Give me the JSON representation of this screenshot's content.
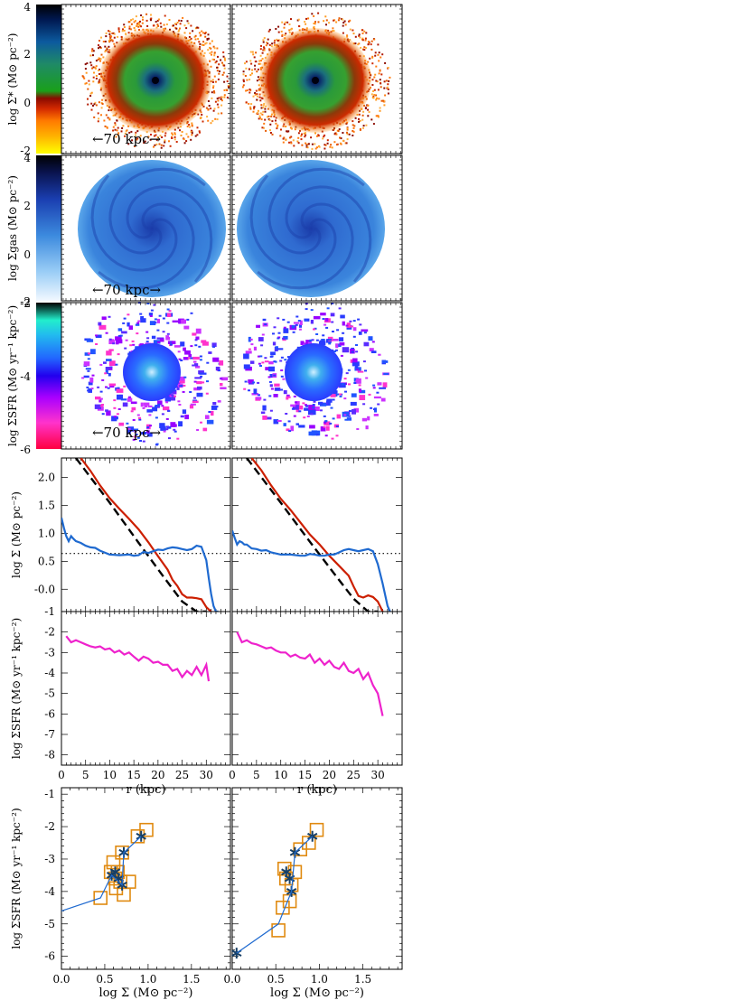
{
  "chart_data": [
    {
      "type": "heatmap",
      "panel": "stellar-surface-density-maps",
      "colorbar": {
        "label": "log Σ* (M⊙ pc⁻²)",
        "ticks": [
          "4",
          "2",
          "0",
          "-2"
        ],
        "range": [
          -2,
          4
        ]
      },
      "scale_label": "←70 kpc→",
      "colormap": [
        "#ffff00",
        "#ff9900",
        "#cc2200",
        "#8a0a00",
        "#1aa01a",
        "#1f8a66",
        "#1060a0",
        "#001850",
        "#000000"
      ]
    },
    {
      "type": "heatmap",
      "panel": "gas-surface-density-maps",
      "colorbar": {
        "label": "log Σgas (M⊙ pc⁻²)",
        "ticks": [
          "4",
          "2",
          "0",
          "-2"
        ],
        "range": [
          -2,
          4
        ]
      },
      "scale_label": "←70 kpc→",
      "colormap": [
        "#e8f4ff",
        "#8ec4f4",
        "#3c8ade",
        "#1a4ab8",
        "#0a1e70",
        "#000000"
      ]
    },
    {
      "type": "heatmap",
      "panel": "sfr-surface-density-maps",
      "colorbar": {
        "label": "log ΣSFR (M⊙ yr⁻¹ kpc⁻²)",
        "ticks": [
          "-2",
          "-4",
          "-6"
        ],
        "range": [
          -6,
          0
        ]
      },
      "scale_label": "←70 kpc→",
      "colormap": [
        "#ff0040",
        "#ff33cc",
        "#aa00ff",
        "#3300ee",
        "#2266ff",
        "#22bbee",
        "#22eecc",
        "#000000"
      ]
    },
    {
      "type": "line",
      "panel": "surface-density-profiles",
      "ylabel": "log Σ (M⊙ pc⁻²)",
      "xlim": [
        0,
        35
      ],
      "ylim": [
        -0.4,
        2.35
      ],
      "yticks": [
        -0.0,
        0.5,
        1.0,
        1.5,
        2.0
      ],
      "ytick_labels": [
        "-0.0",
        "0.5",
        "1.0",
        "1.5",
        "2.0"
      ],
      "hline": 0.64,
      "series": [
        {
          "panel": "left",
          "color": "#cc1f00",
          "style": "solid",
          "x": [
            4,
            6,
            8,
            10,
            12,
            14,
            16,
            18,
            20,
            22,
            23,
            24,
            25,
            26,
            27,
            28,
            29,
            30,
            31
          ],
          "y": [
            2.38,
            2.12,
            1.86,
            1.63,
            1.44,
            1.26,
            1.07,
            0.84,
            0.59,
            0.35,
            0.17,
            0.06,
            -0.09,
            -0.15,
            -0.15,
            -0.16,
            -0.18,
            -0.32,
            -0.45
          ]
        },
        {
          "panel": "left",
          "color": "#000000",
          "style": "dashed",
          "x": [
            3,
            10,
            16,
            21,
            25,
            28,
            30
          ],
          "y": [
            2.45,
            1.55,
            0.83,
            0.24,
            -0.22,
            -0.57,
            -0.8
          ]
        },
        {
          "panel": "left",
          "color": "#1f6ad0",
          "style": "solid",
          "x": [
            0,
            0.5,
            1,
            1.5,
            2,
            2.5,
            3,
            4,
            5,
            6,
            7,
            8,
            10,
            12,
            14,
            15,
            16,
            17,
            18,
            19,
            20,
            21,
            22,
            23,
            24,
            25,
            26,
            27,
            28,
            29,
            30,
            30.5,
            31,
            31.5,
            32,
            32.5
          ],
          "y": [
            1.28,
            1.1,
            0.95,
            0.86,
            0.95,
            0.9,
            0.86,
            0.83,
            0.78,
            0.75,
            0.74,
            0.69,
            0.62,
            0.61,
            0.62,
            0.6,
            0.61,
            0.67,
            0.65,
            0.68,
            0.71,
            0.7,
            0.73,
            0.75,
            0.74,
            0.72,
            0.7,
            0.72,
            0.78,
            0.76,
            0.52,
            0.2,
            -0.08,
            -0.3,
            -0.4,
            -0.4
          ]
        },
        {
          "panel": "right",
          "color": "#cc1f00",
          "style": "solid",
          "x": [
            4,
            6,
            8,
            10,
            12,
            14,
            16,
            18,
            20,
            22,
            24,
            25,
            26,
            27,
            28,
            29,
            30,
            31
          ],
          "y": [
            2.38,
            2.13,
            1.86,
            1.62,
            1.42,
            1.2,
            0.98,
            0.8,
            0.6,
            0.42,
            0.24,
            0.05,
            -0.12,
            -0.15,
            -0.11,
            -0.14,
            -0.22,
            -0.45
          ]
        },
        {
          "panel": "right",
          "color": "#000000",
          "style": "dashed",
          "x": [
            3,
            10,
            16,
            21,
            25,
            28,
            30
          ],
          "y": [
            2.45,
            1.55,
            0.85,
            0.28,
            -0.17,
            -0.52,
            -0.75
          ]
        },
        {
          "panel": "right",
          "color": "#1f6ad0",
          "style": "solid",
          "x": [
            0,
            0.5,
            1,
            1.5,
            2,
            2.5,
            3,
            4,
            5,
            6,
            7,
            8,
            10,
            12,
            14,
            15,
            16,
            17,
            18,
            19,
            20,
            21,
            22,
            23,
            24,
            25,
            26,
            27,
            28,
            29,
            30,
            31,
            32,
            32.5
          ],
          "y": [
            1.05,
            0.92,
            0.8,
            0.86,
            0.84,
            0.8,
            0.8,
            0.73,
            0.72,
            0.69,
            0.7,
            0.66,
            0.62,
            0.62,
            0.6,
            0.6,
            0.63,
            0.62,
            0.6,
            0.6,
            0.62,
            0.62,
            0.66,
            0.7,
            0.72,
            0.7,
            0.68,
            0.7,
            0.72,
            0.68,
            0.45,
            0.1,
            -0.3,
            -0.4
          ]
        }
      ]
    },
    {
      "type": "line",
      "panel": "sfr-density-profiles",
      "ylabel": "log ΣSFR (M⊙ yr⁻¹ kpc⁻²)",
      "xlabel": "r (kpc)",
      "xlim": [
        0,
        35
      ],
      "ylim": [
        -8.5,
        -1
      ],
      "xticks": [
        0,
        5,
        10,
        15,
        20,
        25,
        30
      ],
      "xtick_labels": [
        "0",
        "5",
        "10",
        "15",
        "20",
        "25",
        "30"
      ],
      "yticks": [
        -8,
        -7,
        -6,
        -5,
        -4,
        -3,
        -2,
        -1
      ],
      "ytick_labels": [
        "-8",
        "-7",
        "-6",
        "-5",
        "-4",
        "-3",
        "-2",
        "-1"
      ],
      "series": [
        {
          "panel": "left",
          "color": "#ee22cc",
          "x": [
            1,
            2,
            3,
            4,
            5,
            6,
            7,
            8,
            9,
            10,
            11,
            12,
            13,
            14,
            15,
            16,
            17,
            18,
            19,
            20,
            21,
            22,
            23,
            24,
            25,
            26,
            27,
            28,
            29,
            30,
            30.5
          ],
          "y": [
            -2.2,
            -2.5,
            -2.4,
            -2.5,
            -2.6,
            -2.7,
            -2.75,
            -2.7,
            -2.85,
            -2.8,
            -3.0,
            -2.9,
            -3.1,
            -3.0,
            -3.2,
            -3.4,
            -3.2,
            -3.3,
            -3.5,
            -3.45,
            -3.6,
            -3.6,
            -3.9,
            -3.8,
            -4.2,
            -3.9,
            -4.1,
            -3.7,
            -4.1,
            -3.6,
            -4.4
          ]
        },
        {
          "panel": "right",
          "color": "#ee22cc",
          "x": [
            1,
            2,
            3,
            4,
            5,
            6,
            7,
            8,
            9,
            10,
            11,
            12,
            13,
            14,
            15,
            16,
            17,
            18,
            19,
            20,
            21,
            22,
            23,
            24,
            25,
            26,
            27,
            28,
            29,
            30,
            31
          ],
          "y": [
            -2.0,
            -2.5,
            -2.4,
            -2.55,
            -2.6,
            -2.7,
            -2.8,
            -2.75,
            -2.9,
            -3.0,
            -3.0,
            -3.2,
            -3.1,
            -3.25,
            -3.3,
            -3.1,
            -3.5,
            -3.3,
            -3.6,
            -3.4,
            -3.7,
            -3.8,
            -3.5,
            -3.9,
            -4.0,
            -3.8,
            -4.3,
            -4.0,
            -4.6,
            -5.0,
            -6.1
          ]
        }
      ]
    },
    {
      "type": "scatter",
      "panel": "kennicutt-schmidt",
      "xlabel": "log Σ (M⊙ pc⁻²)",
      "ylabel": "log ΣSFR (M⊙ yr⁻¹ kpc⁻²)",
      "xlim": [
        0,
        1.95
      ],
      "ylim": [
        -6.4,
        -0.8
      ],
      "xticks": [
        0,
        0.5,
        1.0,
        1.5
      ],
      "xtick_labels": [
        "0.0",
        "0.5",
        "1.0",
        "1.5"
      ],
      "yticks": [
        -6,
        -5,
        -4,
        -3,
        -2,
        -1
      ],
      "ytick_labels": [
        "-6",
        "-5",
        "-4",
        "-3",
        "-2",
        "-1"
      ],
      "series": [
        {
          "panel": "left",
          "marker": "square",
          "color": "#e08a10",
          "x": [
            0.45,
            0.57,
            0.6,
            0.62,
            0.63,
            0.65,
            0.68,
            0.72,
            0.7,
            0.78,
            0.88,
            0.98
          ],
          "y": [
            -4.2,
            -3.4,
            -3.1,
            -3.6,
            -3.9,
            -3.4,
            -3.7,
            -4.1,
            -2.8,
            -3.7,
            -2.3,
            -2.1
          ]
        },
        {
          "panel": "left",
          "marker": "asterisk",
          "color": "#173f66",
          "x": [
            0.58,
            0.62,
            0.66,
            0.7,
            0.72,
            0.92
          ],
          "y": [
            -3.5,
            -3.4,
            -3.6,
            -3.8,
            -2.8,
            -2.3
          ]
        },
        {
          "panel": "left",
          "style": "line",
          "color": "#1f6ad0",
          "x": [
            0.0,
            0.45,
            0.58,
            0.7,
            0.72,
            0.92
          ],
          "y": [
            -4.6,
            -4.2,
            -3.5,
            -3.8,
            -2.8,
            -2.3
          ]
        },
        {
          "panel": "right",
          "marker": "square",
          "color": "#e08a10",
          "x": [
            0.53,
            0.58,
            0.6,
            0.62,
            0.66,
            0.68,
            0.72,
            0.78,
            0.88,
            0.97
          ],
          "y": [
            -5.2,
            -4.5,
            -3.3,
            -3.6,
            -4.3,
            -3.8,
            -3.4,
            -2.7,
            -2.5,
            -2.1
          ]
        },
        {
          "panel": "right",
          "marker": "asterisk",
          "color": "#173f66",
          "x": [
            0.05,
            0.62,
            0.66,
            0.68,
            0.72,
            0.92
          ],
          "y": [
            -5.9,
            -3.4,
            -3.6,
            -4.0,
            -2.8,
            -2.3
          ]
        },
        {
          "panel": "right",
          "style": "line",
          "color": "#1f6ad0",
          "x": [
            0.05,
            0.53,
            0.68,
            0.72,
            0.92
          ],
          "y": [
            -5.9,
            -5.0,
            -4.0,
            -2.8,
            -2.3
          ]
        }
      ]
    }
  ]
}
